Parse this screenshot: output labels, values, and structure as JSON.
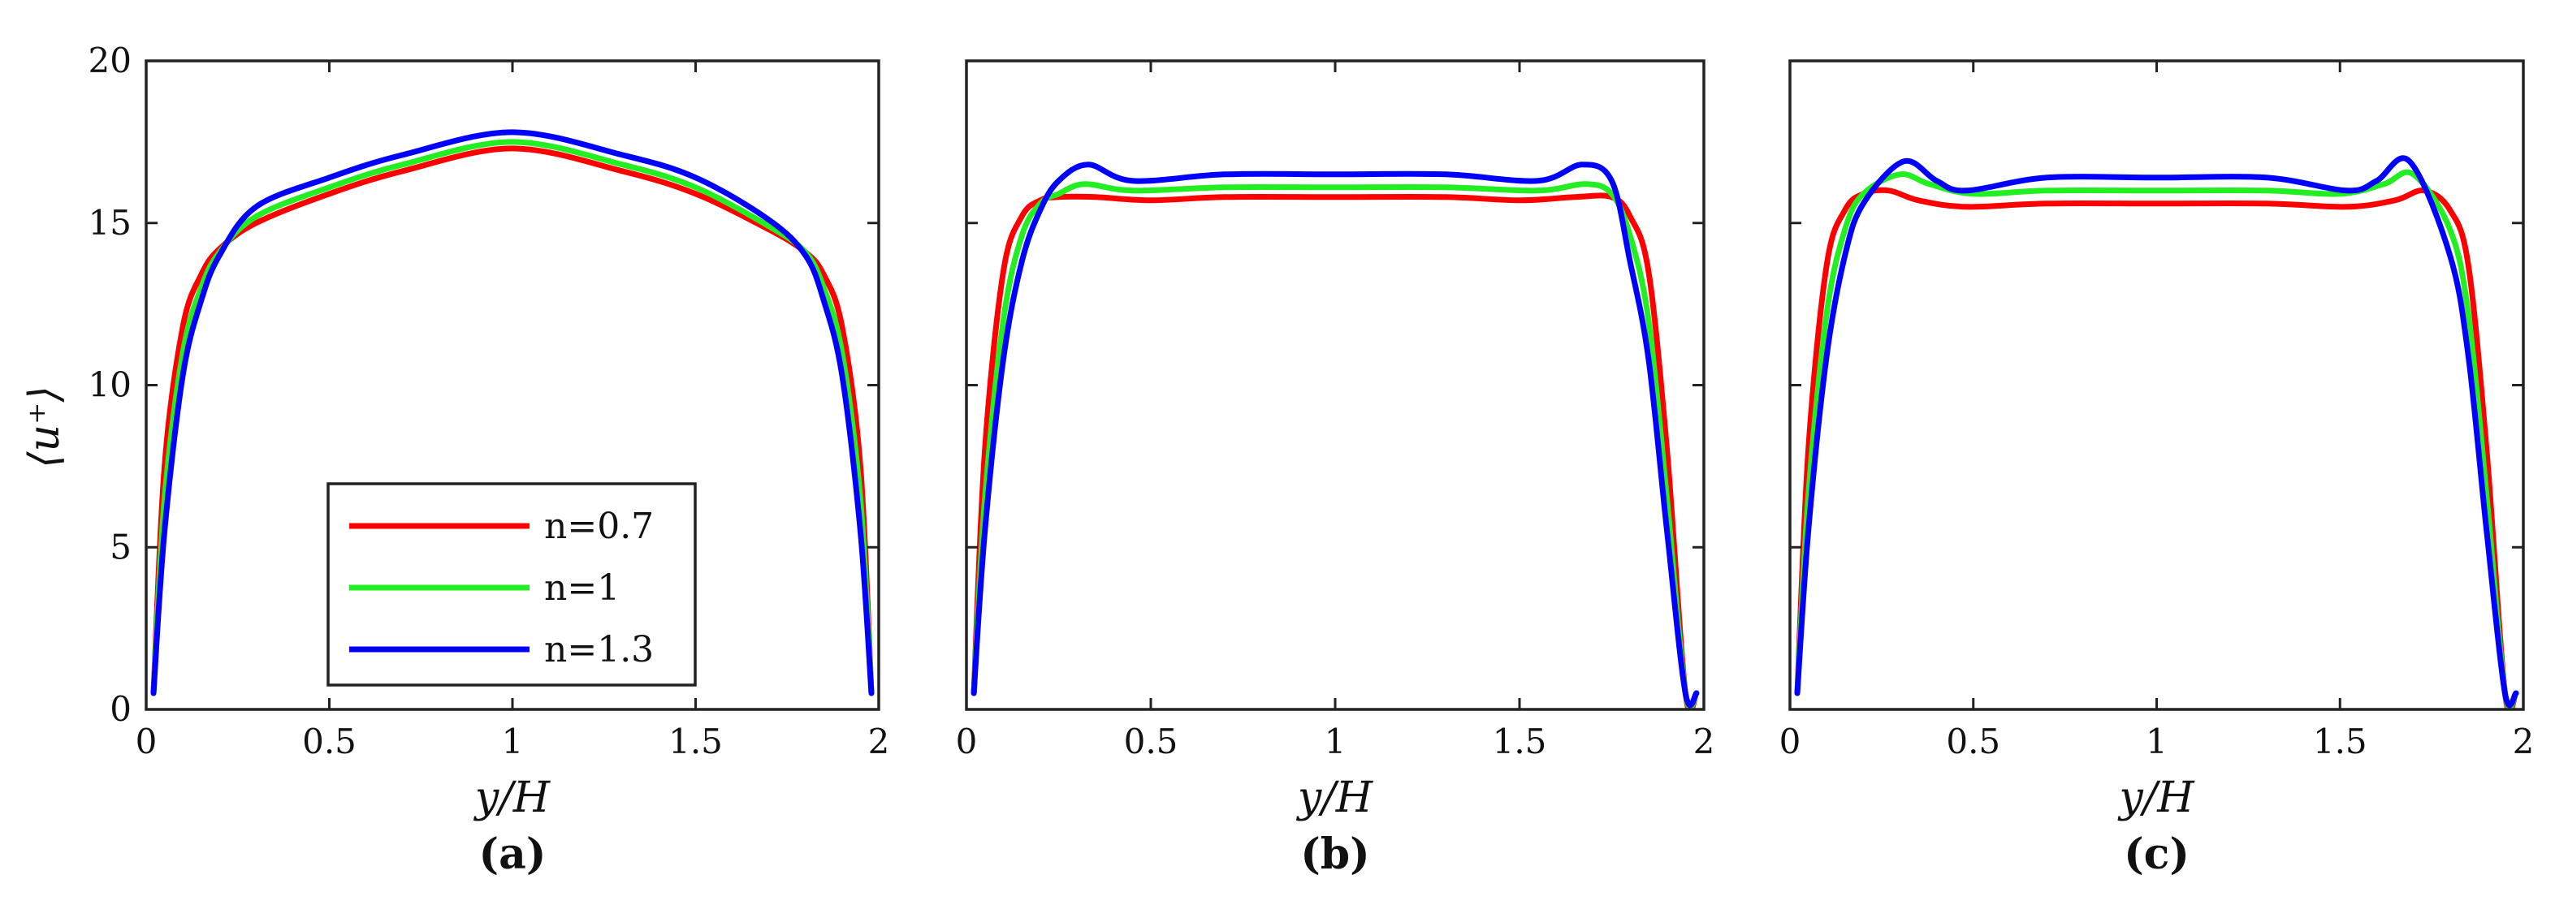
{
  "figure": {
    "ylabel": "⟨u⁺⟩",
    "legend": {
      "location": "lower-left of panel (a)",
      "entries": [
        "n=0.7",
        "n=1",
        "n=1.3"
      ]
    }
  },
  "series_colors": {
    "n=0.7": "#ff0000",
    "n=1": "#22ee22",
    "n=1.3": "#0000ff"
  },
  "chart_data": [
    {
      "type": "line",
      "panel": "(a)",
      "xlabel": "y/H",
      "ylabel": "⟨u⁺⟩",
      "xlim": [
        0,
        2
      ],
      "ylim": [
        0,
        20
      ],
      "xticks": [
        0,
        0.5,
        1,
        1.5,
        2
      ],
      "xtick_labels": [
        "0",
        "0.5",
        "1",
        "1.5",
        "2"
      ],
      "yticks": [
        0,
        5,
        10,
        15,
        20
      ],
      "ytick_labels": [
        "0",
        "5",
        "10",
        "15",
        "20"
      ],
      "series": [
        {
          "name": "n=0.7",
          "x": [
            0.02,
            0.05,
            0.1,
            0.15,
            0.2,
            0.3,
            0.5,
            0.7,
            1.0,
            1.3,
            1.5,
            1.7,
            1.8,
            1.85,
            1.9,
            1.95,
            1.98
          ],
          "values": [
            0.5,
            7.5,
            11.8,
            13.4,
            14.2,
            15.0,
            15.9,
            16.6,
            17.3,
            16.6,
            15.9,
            14.8,
            14.1,
            13.4,
            11.8,
            7.5,
            0.5
          ]
        },
        {
          "name": "n=1",
          "x": [
            0.02,
            0.05,
            0.1,
            0.15,
            0.2,
            0.3,
            0.5,
            0.7,
            1.0,
            1.3,
            1.5,
            1.7,
            1.8,
            1.85,
            1.9,
            1.95,
            1.98
          ],
          "values": [
            0.5,
            6.5,
            11.0,
            13.0,
            14.1,
            15.2,
            16.1,
            16.8,
            17.5,
            16.8,
            16.1,
            14.9,
            14.1,
            13.0,
            11.0,
            6.5,
            0.5
          ]
        },
        {
          "name": "n=1.3",
          "x": [
            0.02,
            0.05,
            0.1,
            0.15,
            0.2,
            0.3,
            0.5,
            0.7,
            1.0,
            1.3,
            1.5,
            1.7,
            1.8,
            1.85,
            1.9,
            1.95,
            1.98
          ],
          "values": [
            0.5,
            5.5,
            10.3,
            12.6,
            14.0,
            15.5,
            16.4,
            17.1,
            17.8,
            17.1,
            16.4,
            15.1,
            14.0,
            12.6,
            10.3,
            5.5,
            0.5
          ]
        }
      ]
    },
    {
      "type": "line",
      "panel": "(b)",
      "xlabel": "y/H",
      "xlim": [
        0,
        2
      ],
      "ylim": [
        0,
        20
      ],
      "xticks": [
        0,
        0.5,
        1,
        1.5,
        2
      ],
      "xtick_labels": [
        "0",
        "0.5",
        "1",
        "1.5",
        "2"
      ],
      "yticks": [
        0,
        5,
        10,
        15,
        20
      ],
      "series": [
        {
          "name": "n=0.7",
          "x": [
            0.02,
            0.05,
            0.1,
            0.15,
            0.2,
            0.25,
            0.35,
            0.5,
            0.7,
            1.0,
            1.3,
            1.5,
            1.65,
            1.75,
            1.8,
            1.85,
            1.9,
            1.95,
            1.98
          ],
          "values": [
            0.5,
            8.0,
            13.5,
            15.2,
            15.7,
            15.8,
            15.8,
            15.7,
            15.8,
            15.8,
            15.8,
            15.7,
            15.8,
            15.8,
            15.2,
            13.5,
            8.0,
            0.5,
            0.5
          ]
        },
        {
          "name": "n=1",
          "x": [
            0.02,
            0.05,
            0.1,
            0.15,
            0.2,
            0.25,
            0.32,
            0.45,
            0.7,
            1.0,
            1.3,
            1.55,
            1.68,
            1.75,
            1.8,
            1.85,
            1.9,
            1.95,
            1.98
          ],
          "values": [
            0.5,
            6.5,
            12.0,
            14.6,
            15.6,
            15.9,
            16.2,
            16.0,
            16.1,
            16.1,
            16.1,
            16.0,
            16.2,
            15.9,
            14.6,
            12.0,
            6.5,
            0.5,
            0.5
          ]
        },
        {
          "name": "n=1.3",
          "x": [
            0.02,
            0.05,
            0.1,
            0.15,
            0.2,
            0.25,
            0.33,
            0.45,
            0.7,
            1.0,
            1.3,
            1.55,
            1.67,
            1.75,
            1.8,
            1.85,
            1.9,
            1.95,
            1.98
          ],
          "values": [
            0.5,
            5.5,
            10.8,
            13.8,
            15.4,
            16.3,
            16.8,
            16.3,
            16.5,
            16.5,
            16.5,
            16.3,
            16.8,
            16.3,
            13.8,
            10.8,
            5.5,
            0.5,
            0.5
          ]
        }
      ]
    },
    {
      "type": "line",
      "panel": "(c)",
      "xlabel": "y/H",
      "xlim": [
        0,
        2
      ],
      "ylim": [
        0,
        20
      ],
      "xticks": [
        0,
        0.5,
        1,
        1.5,
        2
      ],
      "xtick_labels": [
        "0",
        "0.5",
        "1",
        "1.5",
        "2"
      ],
      "yticks": [
        0,
        5,
        10,
        15,
        20
      ],
      "series": [
        {
          "name": "n=0.7",
          "x": [
            0.02,
            0.05,
            0.1,
            0.15,
            0.2,
            0.27,
            0.35,
            0.48,
            0.7,
            1.0,
            1.3,
            1.52,
            1.65,
            1.73,
            1.8,
            1.85,
            1.9,
            1.95,
            1.98
          ],
          "values": [
            0.5,
            8.0,
            13.7,
            15.4,
            15.9,
            16.0,
            15.7,
            15.5,
            15.6,
            15.6,
            15.6,
            15.5,
            15.7,
            16.0,
            15.4,
            13.7,
            8.0,
            0.5,
            0.5
          ]
        },
        {
          "name": "n=1",
          "x": [
            0.02,
            0.05,
            0.1,
            0.15,
            0.2,
            0.3,
            0.38,
            0.5,
            0.7,
            1.0,
            1.3,
            1.5,
            1.62,
            1.7,
            1.8,
            1.85,
            1.9,
            1.95,
            1.98
          ],
          "values": [
            0.5,
            6.6,
            12.2,
            14.8,
            15.9,
            16.5,
            16.2,
            15.9,
            16.0,
            16.0,
            16.0,
            15.9,
            16.2,
            16.5,
            14.8,
            12.2,
            6.6,
            0.5,
            0.5
          ]
        },
        {
          "name": "n=1.3",
          "x": [
            0.02,
            0.05,
            0.1,
            0.15,
            0.2,
            0.31,
            0.4,
            0.48,
            0.7,
            1.0,
            1.3,
            1.52,
            1.6,
            1.69,
            1.8,
            1.85,
            1.9,
            1.95,
            1.98
          ],
          "values": [
            0.5,
            5.5,
            10.9,
            14.0,
            15.6,
            16.9,
            16.3,
            16.0,
            16.4,
            16.4,
            16.4,
            16.0,
            16.3,
            16.9,
            14.0,
            10.9,
            5.5,
            0.5,
            0.5
          ]
        }
      ]
    }
  ]
}
